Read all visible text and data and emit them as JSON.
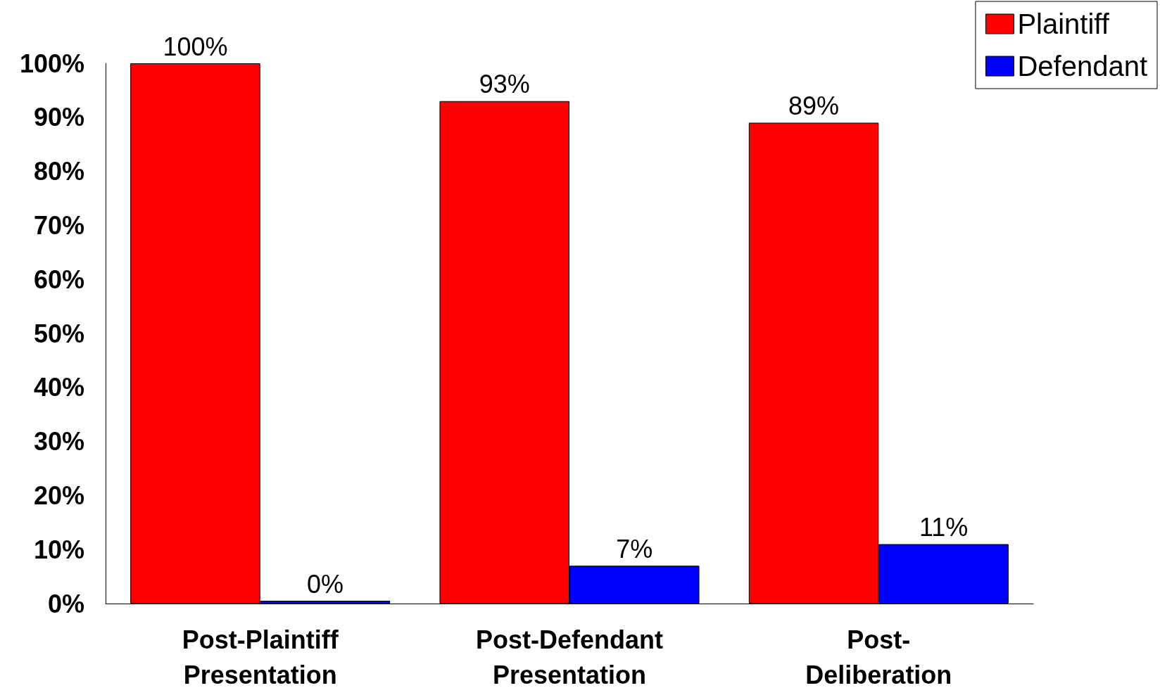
{
  "chart_data": {
    "type": "bar",
    "categories": [
      "Post-Plaintiff Presentation",
      "Post-Defendant Presentation",
      "Post-Deliberation"
    ],
    "series": [
      {
        "name": "Plaintiff",
        "color": "#ff0000",
        "values": [
          100,
          93,
          89
        ],
        "value_labels": [
          "100%",
          "93%",
          "89%"
        ]
      },
      {
        "name": "Defendant",
        "color": "#0000ff",
        "values": [
          0,
          7,
          11
        ],
        "value_labels": [
          "0%",
          "7%",
          "11%"
        ]
      }
    ],
    "ylim": [
      0,
      100
    ],
    "yticks": [
      {
        "value": 0,
        "label": "0%"
      },
      {
        "value": 10,
        "label": "10%"
      },
      {
        "value": 20,
        "label": "20%"
      },
      {
        "value": 30,
        "label": "30%"
      },
      {
        "value": 40,
        "label": "40%"
      },
      {
        "value": 50,
        "label": "50%"
      },
      {
        "value": 60,
        "label": "60%"
      },
      {
        "value": 70,
        "label": "70%"
      },
      {
        "value": 80,
        "label": "80%"
      },
      {
        "value": 90,
        "label": "90%"
      },
      {
        "value": 100,
        "label": "100%"
      }
    ],
    "grid": false,
    "legend": "top right"
  }
}
